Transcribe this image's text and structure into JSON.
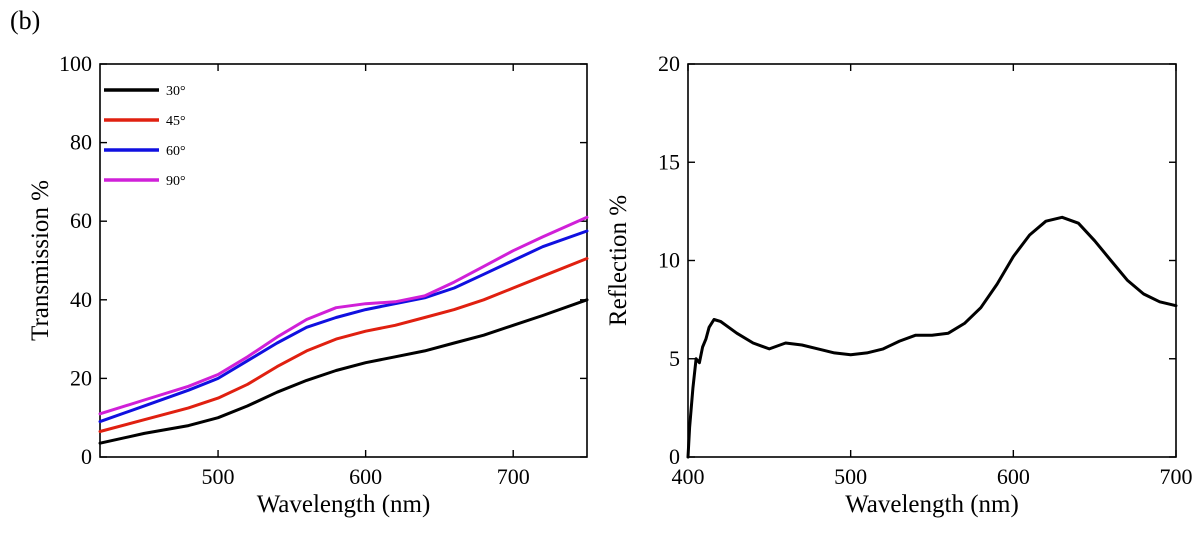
{
  "panel_label": "(b)",
  "colors": {
    "axis": "#000000"
  },
  "chart_data": [
    {
      "type": "line",
      "xlabel": "Wavelength (nm)",
      "ylabel": "Transmission %",
      "xlim": [
        420,
        750
      ],
      "ylim": [
        0,
        100
      ],
      "xticks": [
        500,
        600,
        700
      ],
      "yticks": [
        0,
        20,
        40,
        60,
        80,
        100
      ],
      "legend_position": "top-left",
      "x": [
        420,
        450,
        480,
        500,
        520,
        540,
        560,
        580,
        600,
        620,
        640,
        660,
        680,
        700,
        720,
        750
      ],
      "series": [
        {
          "name": "30°",
          "color": "#000000",
          "values": [
            3.5,
            6.0,
            8.0,
            10.0,
            13.0,
            16.5,
            19.5,
            22.0,
            24.0,
            25.5,
            27.0,
            29.0,
            31.0,
            33.5,
            36.0,
            40.0
          ]
        },
        {
          "name": "45°",
          "color": "#e02010",
          "values": [
            6.5,
            9.5,
            12.5,
            15.0,
            18.5,
            23.0,
            27.0,
            30.0,
            32.0,
            33.5,
            35.5,
            37.5,
            40.0,
            43.0,
            46.0,
            50.5
          ]
        },
        {
          "name": "60°",
          "color": "#1010e0",
          "values": [
            9.0,
            13.0,
            17.0,
            20.0,
            24.5,
            29.0,
            33.0,
            35.5,
            37.5,
            39.0,
            40.5,
            43.0,
            46.5,
            50.0,
            53.5,
            57.5
          ]
        },
        {
          "name": "90°",
          "color": "#d020d8",
          "values": [
            11.0,
            14.5,
            18.0,
            21.0,
            25.5,
            30.5,
            35.0,
            38.0,
            39.0,
            39.5,
            41.0,
            44.5,
            48.5,
            52.5,
            56.0,
            61.0
          ]
        }
      ]
    },
    {
      "type": "line",
      "xlabel": "Wavelength (nm)",
      "ylabel": "Reflection %",
      "xlim": [
        400,
        700
      ],
      "ylim": [
        0,
        20
      ],
      "xticks": [
        400,
        500,
        600,
        700
      ],
      "yticks": [
        0,
        5,
        10,
        15,
        20
      ],
      "x": [
        400,
        401,
        403,
        405,
        407,
        409,
        411,
        413,
        416,
        420,
        425,
        430,
        440,
        450,
        460,
        470,
        480,
        490,
        500,
        510,
        520,
        530,
        540,
        550,
        560,
        570,
        580,
        590,
        600,
        610,
        620,
        630,
        640,
        650,
        660,
        670,
        680,
        690,
        700
      ],
      "series": [
        {
          "color": "#000000",
          "values": [
            0.0,
            1.5,
            3.5,
            5.0,
            4.8,
            5.6,
            6.0,
            6.6,
            7.0,
            6.9,
            6.6,
            6.3,
            5.8,
            5.5,
            5.8,
            5.7,
            5.5,
            5.3,
            5.2,
            5.3,
            5.5,
            5.9,
            6.2,
            6.2,
            6.3,
            6.8,
            7.6,
            8.8,
            10.2,
            11.3,
            12.0,
            12.2,
            11.9,
            11.0,
            10.0,
            9.0,
            8.3,
            7.9,
            7.7
          ]
        }
      ]
    }
  ]
}
